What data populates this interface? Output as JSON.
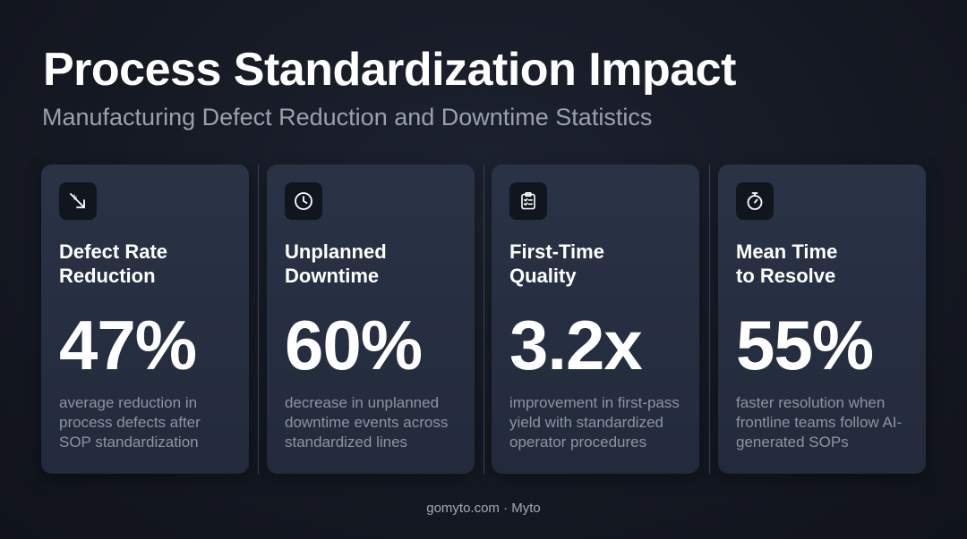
{
  "header": {
    "title": "Process Standardization Impact",
    "subtitle": "Manufacturing Defect Reduction and Downtime Statistics"
  },
  "cards": [
    {
      "icon": "trending-down-icon",
      "title": "Defect Rate\nReduction",
      "value": "47%",
      "description": "average reduction in process defects after SOP standardization"
    },
    {
      "icon": "clock-icon",
      "title": "Unplanned\nDowntime",
      "value": "60%",
      "description": "decrease in unplanned downtime events across standardized lines"
    },
    {
      "icon": "clipboard-check-icon",
      "title": "First-Time\nQuality",
      "value": "3.2x",
      "description": "improvement in first-pass yield with standardized operator procedures"
    },
    {
      "icon": "stopwatch-icon",
      "title": "Mean Time\nto Resolve",
      "value": "55%",
      "description": "faster resolution when frontline teams follow AI-generated SOPs"
    }
  ],
  "footer": {
    "text": "gomyto.com · Myto"
  },
  "colors": {
    "background": "#151923",
    "card": "#262e40",
    "title_text": "#ffffff",
    "muted_text": "#8d95a3"
  }
}
